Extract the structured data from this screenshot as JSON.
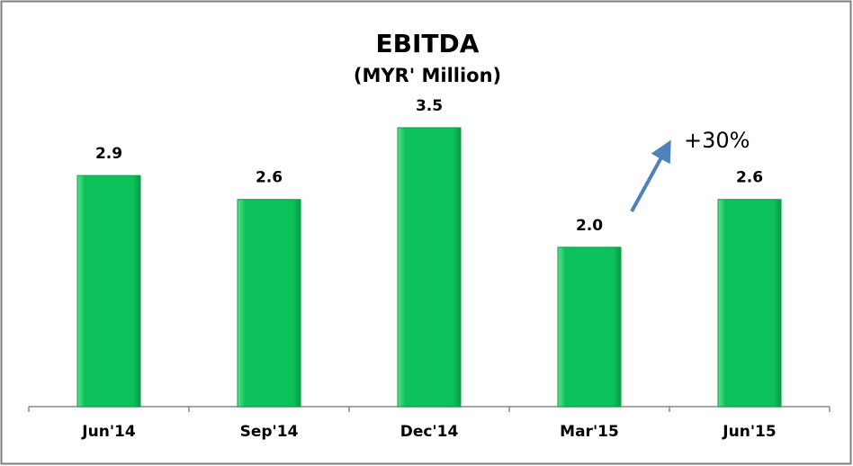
{
  "chart_data": {
    "type": "bar",
    "title": "EBITDA",
    "subtitle": "(MYR' Million)",
    "categories": [
      "Jun'14",
      "Sep'14",
      "Dec'14",
      "Mar'15",
      "Jun'15"
    ],
    "values": [
      2.9,
      2.6,
      3.5,
      2.0,
      2.6
    ],
    "value_labels": [
      "2.9",
      "2.6",
      "3.5",
      "2.0",
      "2.6"
    ],
    "color": "#0cc15a",
    "annotation": "+30%"
  }
}
